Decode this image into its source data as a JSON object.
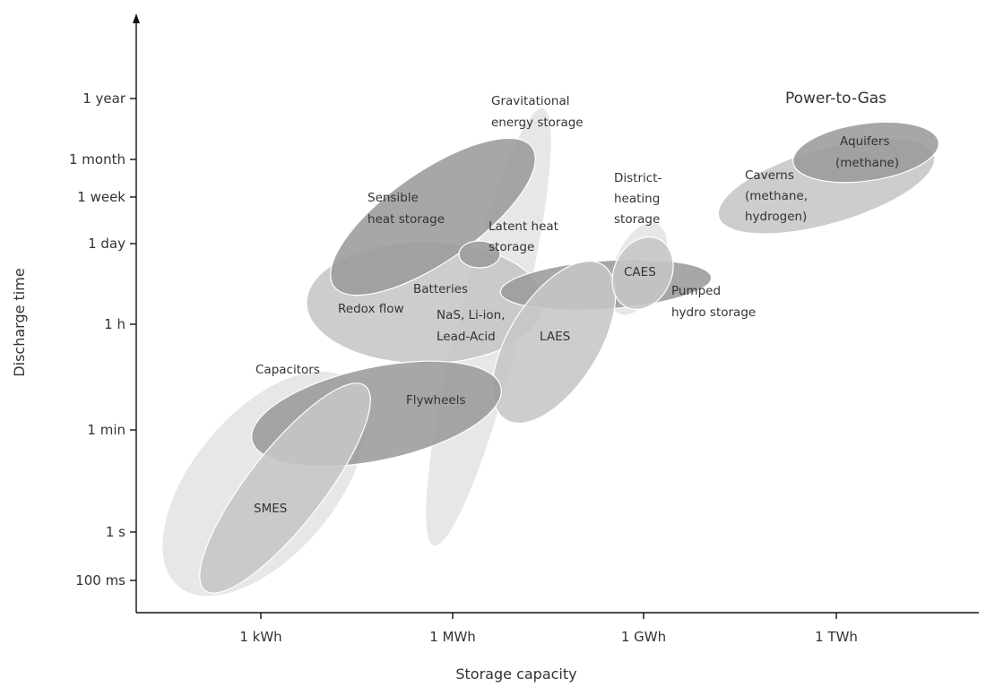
{
  "chart_data": {
    "type": "region-map",
    "xlabel": "Storage capacity",
    "ylabel": "Discharge time",
    "x_ticks": [
      "1 kWh",
      "1 MWh",
      "1 GWh",
      "1 TWh"
    ],
    "y_ticks": [
      "1 year",
      "1 month",
      "1 week",
      "1 day",
      "1 h",
      "1 min",
      "1 s",
      "100 ms"
    ],
    "regions": [
      {
        "id": "capacitors",
        "lines": [
          "Capacitors"
        ],
        "shade": "light"
      },
      {
        "id": "gravitational",
        "lines": [
          "Gravitational",
          "energy storage"
        ],
        "shade": "light"
      },
      {
        "id": "batteries",
        "lines": [
          "Batteries"
        ],
        "shade": "medium"
      },
      {
        "id": "nas",
        "lines": [
          "NaS, Li-ion,",
          "Lead-Acid"
        ],
        "shade": "medium"
      },
      {
        "id": "redox",
        "lines": [
          "Redox flow"
        ],
        "shade": "medium"
      },
      {
        "id": "sensible",
        "lines": [
          "Sensible",
          "heat storage"
        ],
        "shade": "dark"
      },
      {
        "id": "latent",
        "lines": [
          "Latent heat",
          "storage"
        ],
        "shade": "dark"
      },
      {
        "id": "pumped",
        "lines": [
          "Pumped",
          "hydro storage"
        ],
        "shade": "dark"
      },
      {
        "id": "district",
        "lines": [
          "District-",
          "heating",
          "storage"
        ],
        "shade": "light"
      },
      {
        "id": "caes",
        "lines": [
          "CAES"
        ],
        "shade": "medium"
      },
      {
        "id": "laes",
        "lines": [
          "LAES"
        ],
        "shade": "medium"
      },
      {
        "id": "flywheels",
        "lines": [
          "Flywheels"
        ],
        "shade": "dark"
      },
      {
        "id": "smes",
        "lines": [
          "SMES"
        ],
        "shade": "medium"
      },
      {
        "id": "caverns",
        "lines": [
          "Caverns",
          "(methane,",
          "hydrogen)"
        ],
        "shade": "medium"
      },
      {
        "id": "aquifers",
        "lines": [
          "Aquifers",
          "(methane)"
        ],
        "shade": "dark"
      }
    ],
    "group_label": "Power-to-Gas"
  },
  "colors": {
    "light": "#e3e3e3",
    "medium": "#c6c6c6",
    "dark": "#9b9b9b",
    "axis": "#111111",
    "text": "#333333"
  }
}
